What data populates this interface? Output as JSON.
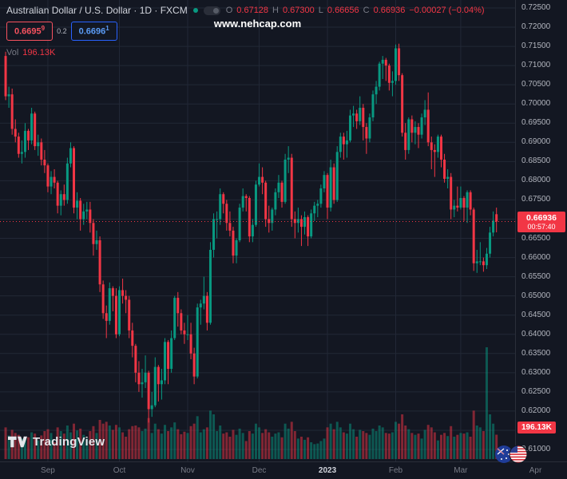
{
  "header": {
    "symbol_title": "Australian Dollar / U.S. Dollar · 1D · FXCM",
    "ohlc": {
      "o_label": "O",
      "o": "0.67128",
      "h_label": "H",
      "h": "0.67300",
      "l_label": "L",
      "l": "0.66656",
      "c_label": "C",
      "c": "0.66936",
      "change": "−0.00027 (−0.04%)"
    },
    "sell_price": "0.6695",
    "sell_sup": "9",
    "buy_price": "0.6696",
    "buy_sup": "1",
    "spread": "0.2",
    "vol_label": "Vol",
    "vol_value": "196.13K",
    "watermark": "www.nehcap.com"
  },
  "price_axis": {
    "current_price": "0.66936",
    "countdown": "00:57:40",
    "volume_label": "196.13K"
  },
  "footer": {
    "logo_text": "TradingView"
  },
  "chart_data": {
    "type": "candlestick",
    "symbol": "AUD/USD",
    "timeframe": "1D",
    "exchange": "FXCM",
    "ylim": [
      0.61,
      0.725
    ],
    "total_slots": 156,
    "grid": true,
    "colors": {
      "up": "#089981",
      "down": "#f23645",
      "vol_up": "rgba(8,153,129,0.5)",
      "vol_down": "rgba(242,54,69,0.5)",
      "grid": "#222836",
      "bg": "#131722",
      "axis_text": "#b2b5be",
      "label_bg": "#f23645"
    },
    "y_ticks": [
      0.725,
      0.72,
      0.715,
      0.71,
      0.705,
      0.7,
      0.695,
      0.69,
      0.685,
      0.68,
      0.675,
      0.67,
      0.665,
      0.66,
      0.655,
      0.65,
      0.645,
      0.64,
      0.635,
      0.63,
      0.625,
      0.62,
      0.615,
      0.61
    ],
    "x_ticks": [
      {
        "i": 13,
        "label": "Sep"
      },
      {
        "i": 35,
        "label": "Oct"
      },
      {
        "i": 56,
        "label": "Nov"
      },
      {
        "i": 78,
        "label": "Dec"
      },
      {
        "i": 99,
        "label": "2023",
        "major": true
      },
      {
        "i": 120,
        "label": "Feb"
      },
      {
        "i": 140,
        "label": "Mar"
      },
      {
        "i": 163,
        "label": "Apr"
      }
    ],
    "candles": [
      [
        0.7125,
        0.7136,
        0.701,
        0.702,
        255
      ],
      [
        0.702,
        0.7045,
        0.699,
        0.7025,
        190
      ],
      [
        0.7025,
        0.704,
        0.692,
        0.6935,
        235
      ],
      [
        0.6935,
        0.696,
        0.69,
        0.6915,
        210
      ],
      [
        0.6915,
        0.6925,
        0.686,
        0.687,
        195
      ],
      [
        0.687,
        0.6905,
        0.6845,
        0.6875,
        165
      ],
      [
        0.6875,
        0.695,
        0.686,
        0.693,
        180
      ],
      [
        0.693,
        0.6935,
        0.688,
        0.6905,
        175
      ],
      [
        0.6905,
        0.699,
        0.6895,
        0.6975,
        215
      ],
      [
        0.6975,
        0.698,
        0.688,
        0.689,
        205
      ],
      [
        0.689,
        0.692,
        0.6865,
        0.69,
        150
      ],
      [
        0.69,
        0.691,
        0.684,
        0.6855,
        190
      ],
      [
        0.6855,
        0.688,
        0.682,
        0.684,
        225
      ],
      [
        0.684,
        0.6845,
        0.677,
        0.6785,
        240
      ],
      [
        0.6785,
        0.6825,
        0.6765,
        0.681,
        210
      ],
      [
        0.681,
        0.683,
        0.678,
        0.6795,
        135
      ],
      [
        0.6795,
        0.68,
        0.6715,
        0.6735,
        255
      ],
      [
        0.6735,
        0.6775,
        0.671,
        0.6765,
        225
      ],
      [
        0.6765,
        0.679,
        0.6735,
        0.675,
        205
      ],
      [
        0.675,
        0.686,
        0.674,
        0.6845,
        270
      ],
      [
        0.6845,
        0.69,
        0.6835,
        0.6885,
        215
      ],
      [
        0.6885,
        0.689,
        0.6715,
        0.673,
        285
      ],
      [
        0.673,
        0.677,
        0.67,
        0.6748,
        230
      ],
      [
        0.6748,
        0.6755,
        0.667,
        0.67,
        245
      ],
      [
        0.67,
        0.674,
        0.6685,
        0.672,
        195
      ],
      [
        0.672,
        0.6745,
        0.67,
        0.6725,
        165
      ],
      [
        0.6725,
        0.6745,
        0.6665,
        0.669,
        225
      ],
      [
        0.669,
        0.67,
        0.6605,
        0.6635,
        265
      ],
      [
        0.6635,
        0.667,
        0.662,
        0.6645,
        210
      ],
      [
        0.6645,
        0.6655,
        0.651,
        0.653,
        315
      ],
      [
        0.653,
        0.654,
        0.644,
        0.6455,
        285
      ],
      [
        0.6455,
        0.6475,
        0.639,
        0.6435,
        300
      ],
      [
        0.6435,
        0.6535,
        0.6425,
        0.652,
        270
      ],
      [
        0.652,
        0.6525,
        0.646,
        0.65,
        235
      ],
      [
        0.65,
        0.652,
        0.639,
        0.64,
        275
      ],
      [
        0.64,
        0.6525,
        0.6395,
        0.6515,
        255
      ],
      [
        0.6515,
        0.6545,
        0.648,
        0.65,
        215
      ],
      [
        0.65,
        0.6515,
        0.6455,
        0.649,
        180
      ],
      [
        0.649,
        0.65,
        0.639,
        0.641,
        240
      ],
      [
        0.641,
        0.643,
        0.634,
        0.637,
        265
      ],
      [
        0.637,
        0.6375,
        0.6275,
        0.63,
        270
      ],
      [
        0.63,
        0.633,
        0.625,
        0.627,
        255
      ],
      [
        0.627,
        0.631,
        0.6235,
        0.6275,
        225
      ],
      [
        0.6275,
        0.6345,
        0.626,
        0.63,
        245
      ],
      [
        0.63,
        0.6305,
        0.617,
        0.6205,
        330
      ],
      [
        0.6205,
        0.625,
        0.6185,
        0.6215,
        210
      ],
      [
        0.6215,
        0.634,
        0.621,
        0.6315,
        285
      ],
      [
        0.6315,
        0.632,
        0.6225,
        0.627,
        240
      ],
      [
        0.627,
        0.631,
        0.623,
        0.628,
        205
      ],
      [
        0.628,
        0.639,
        0.627,
        0.638,
        275
      ],
      [
        0.638,
        0.6385,
        0.627,
        0.631,
        225
      ],
      [
        0.631,
        0.641,
        0.63,
        0.639,
        255
      ],
      [
        0.639,
        0.65,
        0.6385,
        0.6495,
        295
      ],
      [
        0.6495,
        0.651,
        0.642,
        0.6455,
        240
      ],
      [
        0.6455,
        0.6465,
        0.64,
        0.641,
        200
      ],
      [
        0.641,
        0.643,
        0.6375,
        0.64,
        220
      ],
      [
        0.64,
        0.645,
        0.6385,
        0.64,
        210
      ],
      [
        0.64,
        0.643,
        0.6335,
        0.635,
        265
      ],
      [
        0.635,
        0.6365,
        0.627,
        0.629,
        285
      ],
      [
        0.629,
        0.648,
        0.6285,
        0.647,
        345
      ],
      [
        0.647,
        0.649,
        0.6425,
        0.648,
        215
      ],
      [
        0.648,
        0.655,
        0.6465,
        0.65,
        240
      ],
      [
        0.65,
        0.651,
        0.641,
        0.643,
        255
      ],
      [
        0.643,
        0.664,
        0.6425,
        0.662,
        390
      ],
      [
        0.662,
        0.6715,
        0.66,
        0.67,
        360
      ],
      [
        0.67,
        0.672,
        0.665,
        0.67,
        225
      ],
      [
        0.67,
        0.678,
        0.6685,
        0.6765,
        270
      ],
      [
        0.6765,
        0.677,
        0.6715,
        0.674,
        205
      ],
      [
        0.674,
        0.675,
        0.667,
        0.669,
        215
      ],
      [
        0.669,
        0.672,
        0.6655,
        0.667,
        180
      ],
      [
        0.667,
        0.668,
        0.6585,
        0.6605,
        235
      ],
      [
        0.6605,
        0.665,
        0.6585,
        0.6645,
        195
      ],
      [
        0.6645,
        0.674,
        0.664,
        0.673,
        245
      ],
      [
        0.673,
        0.678,
        0.672,
        0.676,
        210
      ],
      [
        0.676,
        0.6765,
        0.672,
        0.6755,
        145
      ],
      [
        0.6755,
        0.676,
        0.664,
        0.6655,
        225
      ],
      [
        0.6655,
        0.67,
        0.664,
        0.6685,
        205
      ],
      [
        0.6685,
        0.68,
        0.668,
        0.679,
        285
      ],
      [
        0.679,
        0.6845,
        0.6785,
        0.681,
        255
      ],
      [
        0.681,
        0.6835,
        0.6765,
        0.6795,
        210
      ],
      [
        0.6795,
        0.68,
        0.668,
        0.67,
        240
      ],
      [
        0.67,
        0.6735,
        0.6665,
        0.669,
        215
      ],
      [
        0.669,
        0.673,
        0.667,
        0.6725,
        180
      ],
      [
        0.6725,
        0.678,
        0.671,
        0.677,
        205
      ],
      [
        0.677,
        0.6815,
        0.6755,
        0.6795,
        215
      ],
      [
        0.6795,
        0.68,
        0.673,
        0.6745,
        175
      ],
      [
        0.6745,
        0.687,
        0.674,
        0.6855,
        285
      ],
      [
        0.6855,
        0.689,
        0.682,
        0.686,
        245
      ],
      [
        0.686,
        0.687,
        0.668,
        0.67,
        300
      ],
      [
        0.67,
        0.672,
        0.665,
        0.669,
        225
      ],
      [
        0.669,
        0.673,
        0.6665,
        0.67,
        165
      ],
      [
        0.67,
        0.671,
        0.663,
        0.668,
        180
      ],
      [
        0.668,
        0.672,
        0.666,
        0.6705,
        155
      ],
      [
        0.6705,
        0.671,
        0.663,
        0.6655,
        175
      ],
      [
        0.6655,
        0.6725,
        0.665,
        0.6715,
        135
      ],
      [
        0.6715,
        0.6745,
        0.6695,
        0.6735,
        120
      ],
      [
        0.6735,
        0.675,
        0.6705,
        0.674,
        125
      ],
      [
        0.674,
        0.679,
        0.673,
        0.678,
        145
      ],
      [
        0.678,
        0.6825,
        0.677,
        0.6815,
        165
      ],
      [
        0.6815,
        0.682,
        0.67,
        0.673,
        255
      ],
      [
        0.673,
        0.6855,
        0.672,
        0.6835,
        285
      ],
      [
        0.6835,
        0.6845,
        0.674,
        0.675,
        240
      ],
      [
        0.675,
        0.689,
        0.6745,
        0.6875,
        300
      ],
      [
        0.6875,
        0.6925,
        0.686,
        0.6915,
        255
      ],
      [
        0.6915,
        0.6925,
        0.6855,
        0.6895,
        215
      ],
      [
        0.6895,
        0.693,
        0.686,
        0.6905,
        205
      ],
      [
        0.6905,
        0.6985,
        0.69,
        0.697,
        285
      ],
      [
        0.697,
        0.6995,
        0.694,
        0.6975,
        240
      ],
      [
        0.6975,
        0.6985,
        0.6935,
        0.6955,
        180
      ],
      [
        0.6955,
        0.702,
        0.6945,
        0.699,
        235
      ],
      [
        0.699,
        0.7,
        0.6905,
        0.694,
        225
      ],
      [
        0.694,
        0.695,
        0.687,
        0.691,
        210
      ],
      [
        0.691,
        0.6975,
        0.69,
        0.6965,
        195
      ],
      [
        0.6965,
        0.7035,
        0.6955,
        0.7025,
        245
      ],
      [
        0.7025,
        0.706,
        0.7,
        0.7045,
        225
      ],
      [
        0.7045,
        0.711,
        0.7035,
        0.7105,
        270
      ],
      [
        0.7105,
        0.7125,
        0.7065,
        0.7115,
        255
      ],
      [
        0.7115,
        0.712,
        0.706,
        0.71,
        210
      ],
      [
        0.71,
        0.7105,
        0.7035,
        0.7055,
        205
      ],
      [
        0.7055,
        0.7085,
        0.702,
        0.706,
        215
      ],
      [
        0.706,
        0.7155,
        0.705,
        0.7145,
        300
      ],
      [
        0.7145,
        0.7157,
        0.706,
        0.7075,
        285
      ],
      [
        0.7075,
        0.708,
        0.6915,
        0.6925,
        360
      ],
      [
        0.6925,
        0.695,
        0.6855,
        0.688,
        270
      ],
      [
        0.688,
        0.6965,
        0.687,
        0.696,
        240
      ],
      [
        0.696,
        0.697,
        0.69,
        0.6925,
        210
      ],
      [
        0.6925,
        0.6955,
        0.6895,
        0.694,
        195
      ],
      [
        0.694,
        0.695,
        0.6885,
        0.692,
        205
      ],
      [
        0.692,
        0.6975,
        0.691,
        0.6965,
        165
      ],
      [
        0.6965,
        0.701,
        0.6945,
        0.6985,
        235
      ],
      [
        0.6985,
        0.703,
        0.689,
        0.69,
        275
      ],
      [
        0.69,
        0.6915,
        0.683,
        0.688,
        255
      ],
      [
        0.688,
        0.6895,
        0.681,
        0.6875,
        215
      ],
      [
        0.6875,
        0.692,
        0.686,
        0.6915,
        150
      ],
      [
        0.6915,
        0.692,
        0.6835,
        0.6855,
        195
      ],
      [
        0.6855,
        0.687,
        0.6795,
        0.6805,
        210
      ],
      [
        0.6805,
        0.683,
        0.678,
        0.681,
        185
      ],
      [
        0.681,
        0.682,
        0.67,
        0.6725,
        265
      ],
      [
        0.6725,
        0.675,
        0.6705,
        0.6735,
        180
      ],
      [
        0.6735,
        0.6785,
        0.672,
        0.673,
        195
      ],
      [
        0.673,
        0.6785,
        0.6725,
        0.6755,
        210
      ],
      [
        0.6755,
        0.676,
        0.6695,
        0.673,
        205
      ],
      [
        0.673,
        0.6775,
        0.669,
        0.677,
        215
      ],
      [
        0.677,
        0.6775,
        0.671,
        0.6725,
        180
      ],
      [
        0.6725,
        0.673,
        0.6565,
        0.6585,
        390
      ],
      [
        0.6585,
        0.662,
        0.656,
        0.659,
        270
      ],
      [
        0.659,
        0.664,
        0.658,
        0.659,
        255
      ],
      [
        0.659,
        0.66,
        0.6563,
        0.658,
        225
      ],
      [
        0.658,
        0.6625,
        0.657,
        0.661,
        900
      ],
      [
        0.661,
        0.668,
        0.66,
        0.6665,
        360
      ],
      [
        0.6665,
        0.672,
        0.6655,
        0.6696,
        285
      ],
      [
        0.67128,
        0.673,
        0.66656,
        0.66936,
        196.13
      ]
    ]
  }
}
